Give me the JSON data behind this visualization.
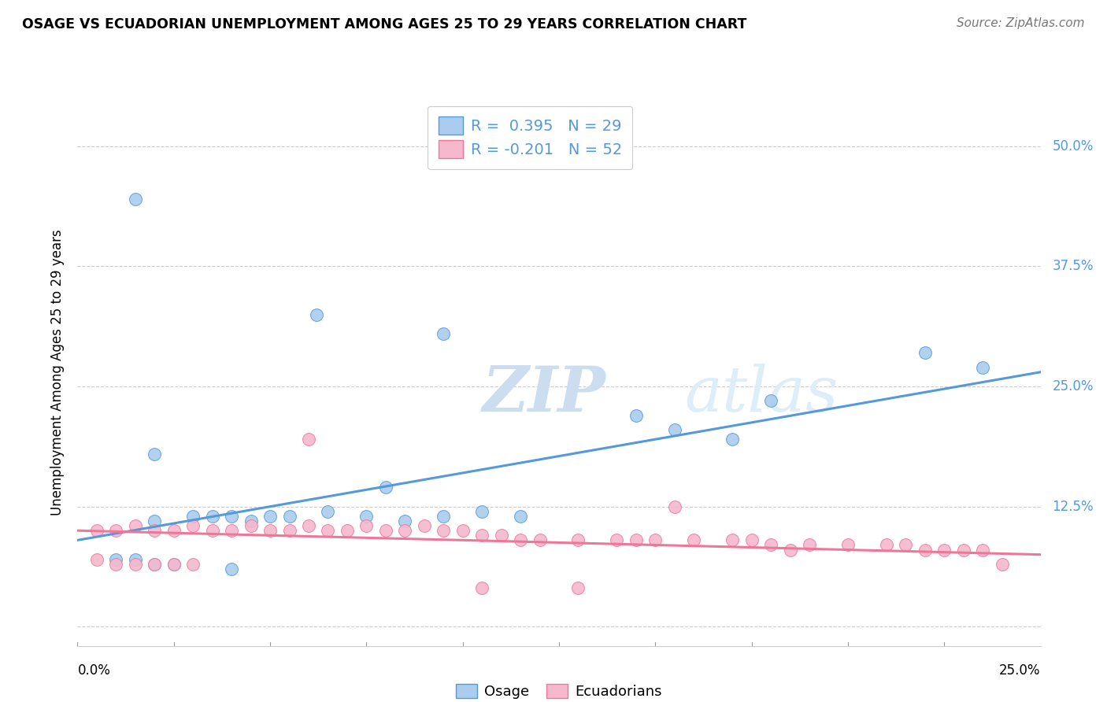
{
  "title": "OSAGE VS ECUADORIAN UNEMPLOYMENT AMONG AGES 25 TO 29 YEARS CORRELATION CHART",
  "source": "Source: ZipAtlas.com",
  "ylabel": "Unemployment Among Ages 25 to 29 years",
  "xlim": [
    0.0,
    0.25
  ],
  "ylim": [
    -0.02,
    0.55
  ],
  "yticks": [
    0.0,
    0.125,
    0.25,
    0.375,
    0.5
  ],
  "ytick_labels": [
    "",
    "12.5%",
    "25.0%",
    "37.5%",
    "50.0%"
  ],
  "watermark_zip": "ZIP",
  "watermark_atlas": "atlas",
  "osage_color": "#aaccee",
  "ecuadorian_color": "#f5b8cc",
  "line_osage_color": "#5599dd",
  "line_ecuadorian_color": "#ee7799",
  "osage_scatter": [
    [
      0.015,
      0.445
    ],
    [
      0.062,
      0.325
    ],
    [
      0.095,
      0.305
    ],
    [
      0.02,
      0.18
    ],
    [
      0.08,
      0.145
    ],
    [
      0.155,
      0.205
    ],
    [
      0.145,
      0.22
    ],
    [
      0.18,
      0.235
    ],
    [
      0.22,
      0.285
    ],
    [
      0.235,
      0.27
    ],
    [
      0.17,
      0.195
    ],
    [
      0.02,
      0.11
    ],
    [
      0.03,
      0.115
    ],
    [
      0.035,
      0.115
    ],
    [
      0.04,
      0.115
    ],
    [
      0.045,
      0.11
    ],
    [
      0.05,
      0.115
    ],
    [
      0.055,
      0.115
    ],
    [
      0.065,
      0.12
    ],
    [
      0.075,
      0.115
    ],
    [
      0.085,
      0.11
    ],
    [
      0.095,
      0.115
    ],
    [
      0.105,
      0.12
    ],
    [
      0.115,
      0.115
    ],
    [
      0.01,
      0.07
    ],
    [
      0.015,
      0.07
    ],
    [
      0.02,
      0.065
    ],
    [
      0.025,
      0.065
    ],
    [
      0.04,
      0.06
    ]
  ],
  "ecuadorian_scatter": [
    [
      0.005,
      0.1
    ],
    [
      0.01,
      0.1
    ],
    [
      0.015,
      0.105
    ],
    [
      0.02,
      0.1
    ],
    [
      0.025,
      0.1
    ],
    [
      0.03,
      0.105
    ],
    [
      0.035,
      0.1
    ],
    [
      0.04,
      0.1
    ],
    [
      0.045,
      0.105
    ],
    [
      0.05,
      0.1
    ],
    [
      0.055,
      0.1
    ],
    [
      0.06,
      0.105
    ],
    [
      0.065,
      0.1
    ],
    [
      0.07,
      0.1
    ],
    [
      0.075,
      0.105
    ],
    [
      0.08,
      0.1
    ],
    [
      0.085,
      0.1
    ],
    [
      0.09,
      0.105
    ],
    [
      0.095,
      0.1
    ],
    [
      0.1,
      0.1
    ],
    [
      0.105,
      0.095
    ],
    [
      0.11,
      0.095
    ],
    [
      0.115,
      0.09
    ],
    [
      0.12,
      0.09
    ],
    [
      0.13,
      0.09
    ],
    [
      0.14,
      0.09
    ],
    [
      0.145,
      0.09
    ],
    [
      0.15,
      0.09
    ],
    [
      0.16,
      0.09
    ],
    [
      0.17,
      0.09
    ],
    [
      0.175,
      0.09
    ],
    [
      0.18,
      0.085
    ],
    [
      0.19,
      0.085
    ],
    [
      0.2,
      0.085
    ],
    [
      0.21,
      0.085
    ],
    [
      0.215,
      0.085
    ],
    [
      0.22,
      0.08
    ],
    [
      0.225,
      0.08
    ],
    [
      0.23,
      0.08
    ],
    [
      0.235,
      0.08
    ],
    [
      0.005,
      0.07
    ],
    [
      0.01,
      0.065
    ],
    [
      0.015,
      0.065
    ],
    [
      0.02,
      0.065
    ],
    [
      0.025,
      0.065
    ],
    [
      0.03,
      0.065
    ],
    [
      0.06,
      0.195
    ],
    [
      0.105,
      0.04
    ],
    [
      0.13,
      0.04
    ],
    [
      0.155,
      0.125
    ],
    [
      0.185,
      0.08
    ],
    [
      0.24,
      0.065
    ]
  ],
  "osage_line_x": [
    0.0,
    0.25
  ],
  "osage_line_y": [
    0.09,
    0.265
  ],
  "ecuadorian_line_x": [
    0.0,
    0.25
  ],
  "ecuadorian_line_y": [
    0.1,
    0.075
  ]
}
